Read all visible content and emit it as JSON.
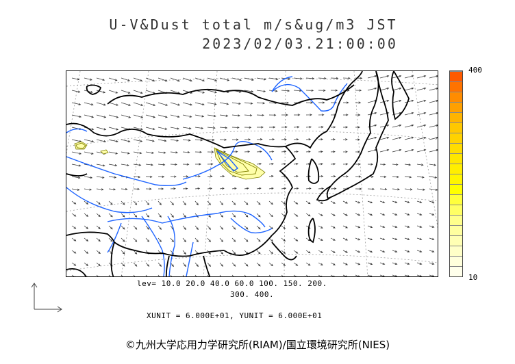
{
  "title_line1": "U-V&Dust total m/s&ug/m3 JST",
  "title_line2": "2023/02/03.21:00:00",
  "colorbar": {
    "max_label": "400",
    "min_label": "10",
    "colors": [
      "#ff5a00",
      "#ff7300",
      "#ff8c00",
      "#ffa000",
      "#ffb400",
      "#ffc800",
      "#ffd200",
      "#ffdc00",
      "#ffe600",
      "#ffee00",
      "#fff500",
      "#ffff00",
      "#ffff3c",
      "#ffff64",
      "#ffff8c",
      "#ffffa0",
      "#ffffb4",
      "#ffffc8",
      "#ffffdc",
      "#ffffeb"
    ]
  },
  "legend": {
    "levels_line1": "lev= 10.0 20.0 40.0 60.0 100. 150. 200.",
    "levels_line2": "300. 400.",
    "units": "XUNIT = 6.000E+01, YUNIT = 6.000E+01"
  },
  "copyright": "©九州大学応用力学研究所(RIAM)/国立環境研究所(NIES)",
  "map": {
    "coast_color": "#000000",
    "river_color": "#1e64ff",
    "grid_color": "#999999",
    "arrow_color": "#333333",
    "dust_fill_color": "#ffffaa",
    "dust_line_color": "#808000",
    "dust_core_color": "#1e64ff"
  }
}
